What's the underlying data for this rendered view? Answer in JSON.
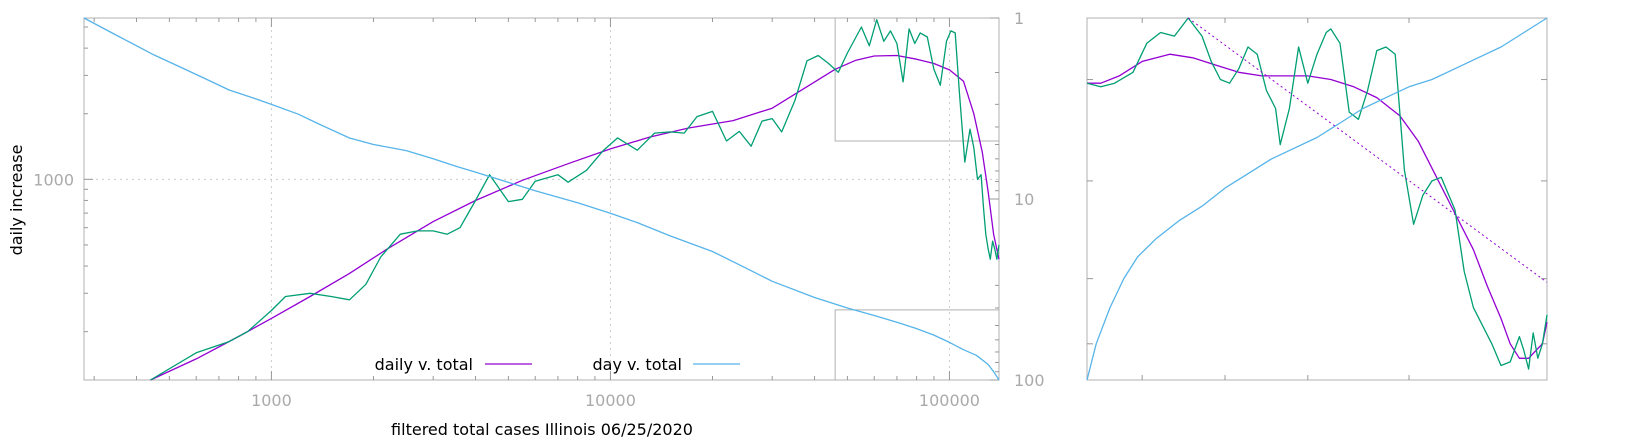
{
  "chart_data": [
    {
      "type": "line",
      "xlabel": "filtered total cases Illinois 06/25/2020",
      "ylabel": "daily increase",
      "x_scale": "log",
      "y_scale": "log",
      "xlim": [
        280,
        140000
      ],
      "ylim": [
        120,
        5500
      ],
      "y2_scale": "log",
      "y2_reversed": true,
      "y2lim": [
        1,
        100
      ],
      "grid": true,
      "legend_position": "bottom-center",
      "x_ticks": [
        1000,
        10000,
        100000
      ],
      "x_tick_labels": [
        "1000",
        "10000",
        "100000"
      ],
      "y_ticks": [
        1000
      ],
      "y_tick_labels": [
        "1000"
      ],
      "y2_ticks": [
        1,
        10,
        100
      ],
      "y2_tick_labels": [
        "1",
        "10",
        "100"
      ],
      "zoom_box": {
        "x": [
          46000,
          140000
        ],
        "y": [
          5500,
          1500
        ]
      },
      "series": [
        {
          "name": "daily v. total",
          "axis": "y",
          "color": "#9400d3",
          "x": [
            440,
            600,
            800,
            1000,
            1300,
            1700,
            2200,
            3000,
            4000,
            5500,
            7500,
            10000,
            13000,
            17000,
            23000,
            30000,
            38000,
            46000,
            53000,
            60000,
            70000,
            80000,
            90000,
            100000,
            110000,
            118000,
            125000,
            130000,
            135000,
            140000
          ],
          "values": [
            120,
            150,
            190,
            230,
            290,
            370,
            480,
            640,
            800,
            990,
            1180,
            1380,
            1560,
            1720,
            1860,
            2120,
            2660,
            3200,
            3520,
            3680,
            3700,
            3560,
            3400,
            3180,
            2820,
            2000,
            1330,
            880,
            560,
            430
          ]
        },
        {
          "name": "",
          "axis": "y",
          "color": "#009e73",
          "x": [
            440,
            600,
            750,
            850,
            1000,
            1100,
            1300,
            1500,
            1700,
            1900,
            2100,
            2400,
            2700,
            3000,
            3300,
            3600,
            4000,
            4400,
            5000,
            5500,
            6000,
            7000,
            7500,
            8500,
            9500,
            10500,
            12000,
            13500,
            15000,
            16500,
            18000,
            20000,
            22000,
            24000,
            26000,
            28000,
            30000,
            32000,
            35000,
            38000,
            41000,
            44000,
            47000,
            50000,
            55000,
            58000,
            61000,
            64000,
            67000,
            70000,
            73000,
            76000,
            79000,
            82000,
            86000,
            90000,
            94000,
            98000,
            101000,
            104000,
            107000,
            111000,
            115000,
            118000,
            121000,
            124000,
            126000,
            128000,
            130000,
            132000,
            134000,
            136000,
            138000,
            140000
          ],
          "values": [
            120,
            160,
            180,
            200,
            250,
            290,
            300,
            290,
            280,
            330,
            440,
            560,
            580,
            580,
            560,
            600,
            800,
            1050,
            790,
            810,
            980,
            1050,
            970,
            1100,
            1350,
            1550,
            1360,
            1630,
            1650,
            1630,
            1940,
            2050,
            1500,
            1660,
            1420,
            1850,
            1900,
            1650,
            2300,
            3500,
            3700,
            3400,
            3100,
            3800,
            5000,
            4100,
            5400,
            4300,
            4800,
            4200,
            2800,
            4900,
            4200,
            4700,
            4500,
            3200,
            2700,
            4300,
            4800,
            4700,
            2500,
            1200,
            1700,
            1400,
            1000,
            1050,
            740,
            560,
            480,
            430,
            520,
            480,
            430,
            500
          ]
        },
        {
          "name": "day v. total",
          "axis": "y2",
          "color": "#56b4e9",
          "x": [
            280,
            350,
            450,
            550,
            650,
            750,
            900,
            1000,
            1200,
            1400,
            1700,
            2000,
            2500,
            3000,
            3500,
            4000,
            5000,
            6000,
            8000,
            10000,
            12000,
            15000,
            20000,
            25000,
            30000,
            40000,
            50000,
            60000,
            70000,
            80000,
            90000,
            100000,
            110000,
            120000,
            130000,
            135000,
            140000
          ],
          "values": [
            1,
            1.25,
            1.6,
            1.9,
            2.2,
            2.5,
            2.8,
            3.0,
            3.4,
            3.9,
            4.6,
            5.0,
            5.4,
            6.0,
            6.6,
            7.1,
            8.1,
            9.0,
            10.5,
            12.0,
            13.5,
            16.0,
            19.5,
            24.0,
            28.5,
            35.0,
            40.0,
            44.0,
            48.0,
            52.0,
            56.5,
            62.0,
            68.0,
            73.0,
            82.0,
            90.0,
            100
          ]
        }
      ]
    },
    {
      "type": "line",
      "xlim": [
        0,
        1
      ],
      "ylim": [
        0,
        1
      ],
      "grid": false,
      "series": [
        {
          "name": "",
          "color": "#9400d3",
          "x": [
            0,
            0.03,
            0.07,
            0.12,
            0.18,
            0.23,
            0.28,
            0.33,
            0.38,
            0.43,
            0.48,
            0.53,
            0.58,
            0.63,
            0.68,
            0.72,
            0.76,
            0.8,
            0.84,
            0.87,
            0.9,
            0.92,
            0.94,
            0.96,
            0.975,
            0.99,
            1.0
          ],
          "values": [
            0.82,
            0.82,
            0.84,
            0.88,
            0.9,
            0.89,
            0.87,
            0.85,
            0.84,
            0.84,
            0.84,
            0.83,
            0.81,
            0.78,
            0.73,
            0.66,
            0.56,
            0.46,
            0.36,
            0.26,
            0.17,
            0.1,
            0.06,
            0.06,
            0.08,
            0.1,
            0.16
          ]
        },
        {
          "name": "",
          "color": "#009e73",
          "x": [
            0,
            0.03,
            0.06,
            0.1,
            0.13,
            0.16,
            0.19,
            0.22,
            0.25,
            0.27,
            0.29,
            0.31,
            0.33,
            0.35,
            0.37,
            0.39,
            0.41,
            0.42,
            0.44,
            0.46,
            0.48,
            0.5,
            0.52,
            0.53,
            0.55,
            0.57,
            0.59,
            0.61,
            0.63,
            0.65,
            0.67,
            0.69,
            0.71,
            0.73,
            0.75,
            0.77,
            0.8,
            0.82,
            0.84,
            0.86,
            0.88,
            0.9,
            0.92,
            0.94,
            0.95,
            0.96,
            0.97,
            0.98,
            0.99,
            1.0
          ],
          "values": [
            0.82,
            0.81,
            0.82,
            0.85,
            0.93,
            0.96,
            0.95,
            1.0,
            0.95,
            0.88,
            0.83,
            0.82,
            0.86,
            0.92,
            0.9,
            0.8,
            0.75,
            0.65,
            0.75,
            0.92,
            0.82,
            0.9,
            0.96,
            0.97,
            0.93,
            0.74,
            0.72,
            0.8,
            0.91,
            0.92,
            0.9,
            0.58,
            0.43,
            0.51,
            0.55,
            0.56,
            0.47,
            0.3,
            0.2,
            0.15,
            0.1,
            0.04,
            0.05,
            0.12,
            0.08,
            0.03,
            0.13,
            0.06,
            0.1,
            0.18
          ]
        },
        {
          "name": "",
          "color": "#56b4e9",
          "x": [
            0,
            0.02,
            0.05,
            0.08,
            0.11,
            0.15,
            0.2,
            0.25,
            0.3,
            0.35,
            0.4,
            0.45,
            0.5,
            0.55,
            0.6,
            0.65,
            0.7,
            0.75,
            0.8,
            0.85,
            0.9,
            0.95,
            1.0
          ],
          "values": [
            0.0,
            0.1,
            0.2,
            0.28,
            0.34,
            0.39,
            0.44,
            0.48,
            0.53,
            0.57,
            0.61,
            0.64,
            0.67,
            0.71,
            0.75,
            0.78,
            0.81,
            0.83,
            0.86,
            0.89,
            0.92,
            0.96,
            1.0
          ]
        },
        {
          "name": "",
          "color": "#9400d3",
          "dashed": true,
          "x": [
            0.22,
            1.0
          ],
          "values": [
            1.0,
            0.27
          ]
        }
      ]
    }
  ]
}
